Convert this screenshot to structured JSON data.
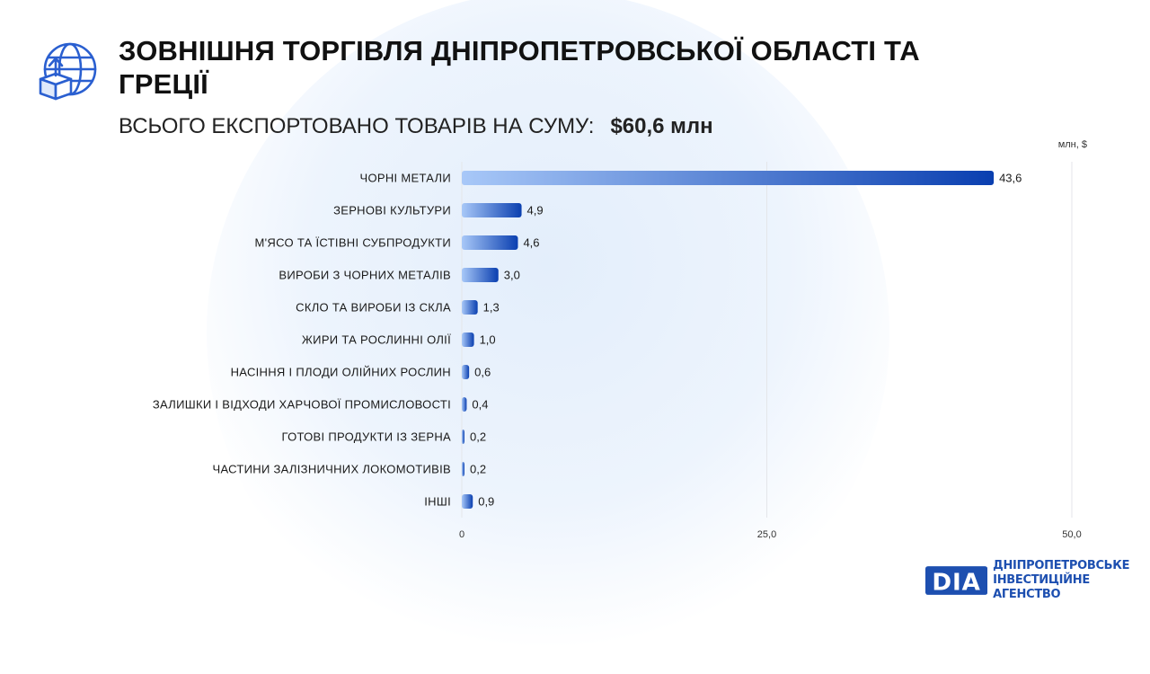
{
  "header": {
    "title": "ЗОВНІШНЯ ТОРГІВЛЯ ДНІПРОПЕТРОВСЬКОЇ ОБЛАСТІ ТА ГРЕЦІЇ",
    "subtitle_prefix": "ВСЬОГО ЕКСПОРТОВАНО ТОВАРІВ НА СУМУ:",
    "subtitle_total": "$60,6 млн",
    "icon": "globe-export-box-icon"
  },
  "chart_data": {
    "type": "bar",
    "orientation": "horizontal",
    "unit_label": "млн, $",
    "categories": [
      "ЧОРНІ МЕТАЛИ",
      "ЗЕРНОВІ КУЛЬТУРИ",
      "М'ЯСО ТА ЇСТІВНІ СУБПРОДУКТИ",
      "ВИРОБИ З ЧОРНИХ МЕТАЛІВ",
      "СКЛО ТА ВИРОБИ ІЗ СКЛА",
      "ЖИРИ ТА РОСЛИННІ ОЛІЇ",
      "НАСІННЯ І ПЛОДИ ОЛІЙНИХ РОСЛИН",
      "ЗАЛИШКИ І ВІДХОДИ ХАРЧОВОЇ ПРОМИСЛОВОСТІ",
      "ГОТОВІ ПРОДУКТИ ІЗ ЗЕРНА",
      "ЧАСТИНИ ЗАЛІЗНИЧНИХ ЛОКОМОТИВІВ",
      "ІНШІ"
    ],
    "values": [
      43.6,
      4.9,
      4.6,
      3.0,
      1.3,
      1.0,
      0.6,
      0.4,
      0.2,
      0.2,
      0.9
    ],
    "value_labels": [
      "43,6",
      "4,9",
      "4,6",
      "3,0",
      "1,3",
      "1,0",
      "0,6",
      "0,4",
      "0,2",
      "0,2",
      "0,9"
    ],
    "xlim": [
      0,
      50
    ],
    "xticks": [
      0,
      25,
      50
    ],
    "xtick_labels": [
      "0",
      "25,0",
      "50,0"
    ],
    "grid": true,
    "colors": {
      "bar_start": "#a8c8f8",
      "bar_end": "#0a3fb0",
      "grid": "#e4e6ea"
    }
  },
  "brand": {
    "logo_text": "DIA",
    "line1": "ДНІПРОПЕТРОВСЬКЕ",
    "line2": "ІНВЕСТИЦІЙНЕ АГЕНСТВО",
    "color": "#1d4fb0"
  }
}
